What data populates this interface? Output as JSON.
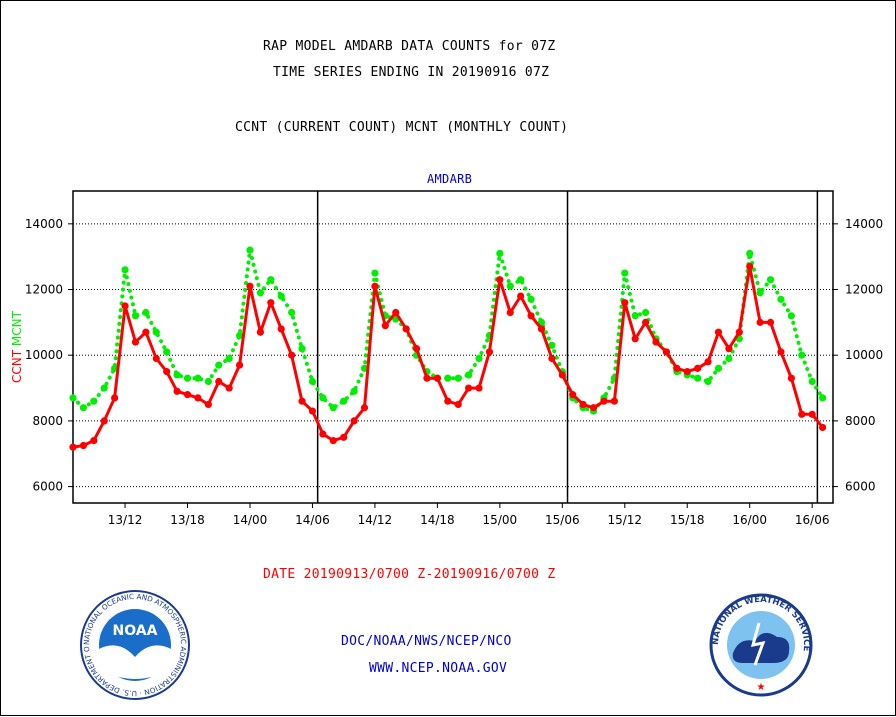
{
  "header": {
    "title_line1": "RAP MODEL AMDARB DATA COUNTS for 07Z",
    "title_line2": "TIME SERIES ENDING IN 20190916 07Z",
    "subtitle": "CCNT (CURRENT COUNT) MCNT (MONTHLY COUNT)"
  },
  "footer": {
    "date_range": "DATE 20190913/0700 Z-20190916/0700 Z",
    "org": "DOC/NOAA/NWS/NCEP/NCO",
    "url": "WWW.NCEP.NOAA.GOV",
    "noaa_logo_text": "NOAA",
    "noaa_ring_text": "NATIONAL OCEANIC AND ATMOSPHERIC ADMINISTRATION · U.S. DEPARTMENT OF COMMERCE",
    "nws_ring_text": "NATIONAL WEATHER SERVICE"
  },
  "colors": {
    "ccnt": "#ff0000",
    "mcnt": "#00ee00",
    "panel_title": "#0000cc"
  },
  "chart_data": {
    "type": "line",
    "title": "AMDARB",
    "ylabel_left_parts": [
      {
        "text": "CCNT",
        "color": "#ff0000"
      },
      {
        "text": "MCNT",
        "color": "#00ee00"
      }
    ],
    "ylim": [
      5500,
      15000
    ],
    "yticks": [
      6000,
      8000,
      10000,
      12000,
      14000
    ],
    "xlim": [
      0,
      73
    ],
    "xticks": [
      {
        "x": 5,
        "label": "13/12"
      },
      {
        "x": 11,
        "label": "13/18"
      },
      {
        "x": 17,
        "label": "14/00"
      },
      {
        "x": 23,
        "label": "14/06"
      },
      {
        "x": 29,
        "label": "14/12"
      },
      {
        "x": 35,
        "label": "14/18"
      },
      {
        "x": 41,
        "label": "15/00"
      },
      {
        "x": 47,
        "label": "15/06"
      },
      {
        "x": 53,
        "label": "15/12"
      },
      {
        "x": 59,
        "label": "15/18"
      },
      {
        "x": 65,
        "label": "16/00"
      },
      {
        "x": 71,
        "label": "16/06"
      }
    ],
    "vlines": [
      23.5,
      47.5,
      71.5
    ],
    "grid": true,
    "series": [
      {
        "name": "CCNT",
        "color": "#ff0000",
        "style": "solid",
        "values": [
          7200,
          7250,
          7400,
          8000,
          8700,
          11500,
          10400,
          10700,
          9900,
          9500,
          8900,
          8800,
          8700,
          8500,
          9200,
          9000,
          9700,
          12100,
          10700,
          11600,
          10800,
          10000,
          8600,
          8300,
          7600,
          7400,
          7500,
          8000,
          8400,
          12100,
          10900,
          11300,
          10800,
          10200,
          9300,
          9300,
          8600,
          8500,
          9000,
          9000,
          10100,
          12300,
          11300,
          11800,
          11200,
          10800,
          9900,
          9400,
          8800,
          8500,
          8400,
          8600,
          8600,
          11600,
          10500,
          11000,
          10400,
          10100,
          9600,
          9500,
          9600,
          9800,
          10700,
          10200,
          10700,
          12700,
          11000,
          11000,
          10100,
          9300,
          8200,
          8200,
          7800
        ]
      },
      {
        "name": "MCNT",
        "color": "#00ee00",
        "style": "dotted",
        "values": [
          8700,
          8400,
          8600,
          9000,
          9600,
          12600,
          11200,
          11300,
          10700,
          10100,
          9400,
          9300,
          9300,
          9200,
          9700,
          9900,
          10600,
          13200,
          11900,
          12300,
          11800,
          11300,
          10200,
          9200,
          8700,
          8400,
          8600,
          8900,
          9600,
          12500,
          11200,
          11100,
          10800,
          10000,
          9500,
          9300,
          9300,
          9300,
          9400,
          9900,
          10600,
          13100,
          12100,
          12300,
          11700,
          11000,
          10300,
          9500,
          8700,
          8400,
          8300,
          8700,
          9300,
          12500,
          11200,
          11300,
          10500,
          10100,
          9500,
          9400,
          9300,
          9200,
          9600,
          9900,
          10500,
          13100,
          11900,
          12300,
          11700,
          11200,
          10000,
          9200,
          8700
        ]
      }
    ]
  }
}
